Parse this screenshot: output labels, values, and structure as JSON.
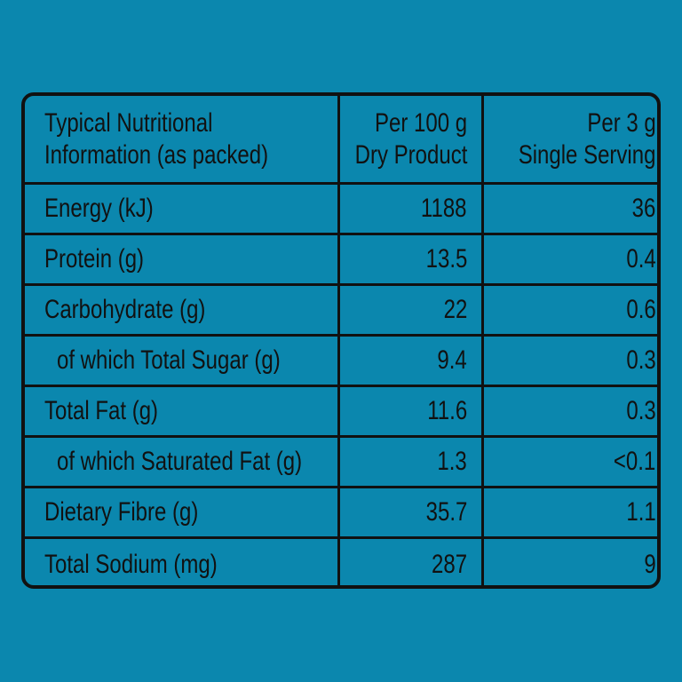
{
  "table": {
    "header": [
      [
        "Typical Nutritional",
        "Information (as packed)"
      ],
      [
        "Per 100 g",
        "Dry Product"
      ],
      [
        "Per 3 g",
        "Single Serving"
      ]
    ],
    "rows": [
      [
        "Energy (kJ)",
        "1188",
        "36"
      ],
      [
        "Protein (g)",
        "13.5",
        "0.4"
      ],
      [
        "Carbohydrate (g)",
        "22",
        "0.6"
      ],
      [
        "of which Total Sugar (g)",
        "9.4",
        "0.3"
      ],
      [
        "Total Fat (g)",
        "11.6",
        "0.3"
      ],
      [
        "of which Saturated Fat (g)",
        "1.3",
        "<0.1"
      ],
      [
        "Dietary Fibre (g)",
        "35.7",
        "1.1"
      ],
      [
        "Total Sodium (mg)",
        "287",
        "9"
      ]
    ]
  }
}
